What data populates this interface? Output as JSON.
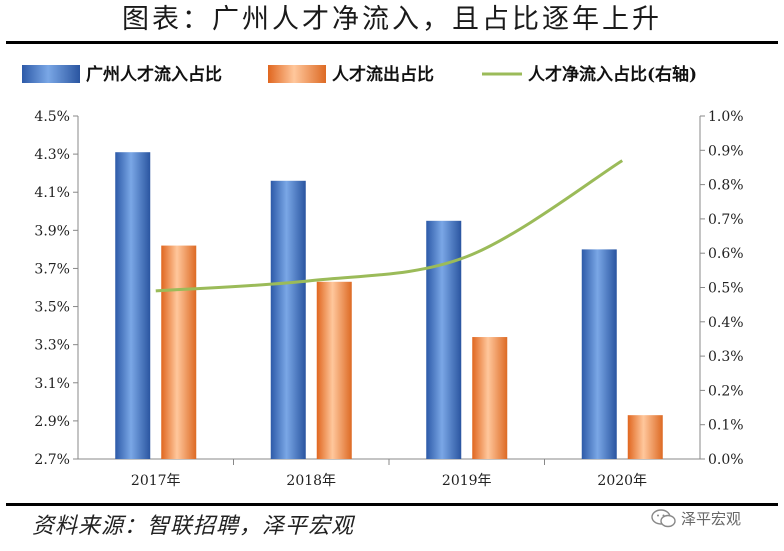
{
  "title": "图表：广州人才净流入，且占比逐年上升",
  "source": "资料来源：智联招聘，泽平宏观",
  "watermark": "泽平宏观",
  "colors": {
    "inflow": "#3b6fc3",
    "outflow": "#f08a45",
    "net": "#9bbb59"
  },
  "chart_data": {
    "type": "bar",
    "categories": [
      "2017年",
      "2018年",
      "2019年",
      "2020年"
    ],
    "series": [
      {
        "name": "广州人才流入占比",
        "type": "bar",
        "axis": "left",
        "values": [
          4.31,
          4.16,
          3.95,
          3.8
        ]
      },
      {
        "name": "人才流出占比",
        "type": "bar",
        "axis": "left",
        "values": [
          3.82,
          3.63,
          3.34,
          2.93
        ]
      },
      {
        "name": "人才净流入占比(右轴)",
        "type": "line",
        "axis": "right",
        "values": [
          0.49,
          0.52,
          0.59,
          0.87
        ]
      }
    ],
    "y_left": {
      "min": 2.7,
      "max": 4.5,
      "ticks": [
        "2.7%",
        "2.9%",
        "3.1%",
        "3.3%",
        "3.5%",
        "3.7%",
        "3.9%",
        "4.1%",
        "4.3%",
        "4.5%"
      ]
    },
    "y_right": {
      "min": 0.0,
      "max": 1.0,
      "ticks": [
        "0.0%",
        "0.1%",
        "0.2%",
        "0.3%",
        "0.4%",
        "0.5%",
        "0.6%",
        "0.7%",
        "0.8%",
        "0.9%",
        "1.0%"
      ]
    },
    "legend_position": "top",
    "grid": false
  }
}
